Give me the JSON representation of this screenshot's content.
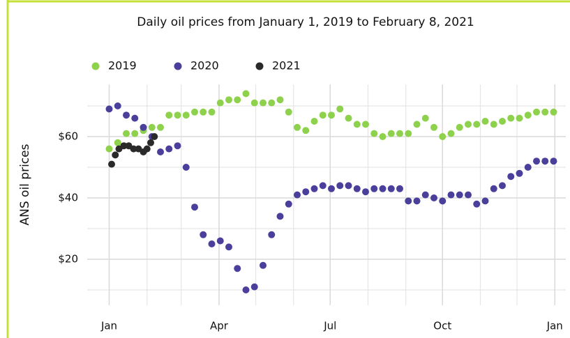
{
  "chart_data": {
    "type": "scatter",
    "title": "Daily oil prices from January 1, 2019 to February 8, 2021",
    "y_label": "ANS oil prices",
    "xlim": [
      -18,
      374
    ],
    "ylim": [
      5,
      77
    ],
    "xticks": [
      {
        "value": 0,
        "label": "Jan"
      },
      {
        "value": 90,
        "label": "Apr"
      },
      {
        "value": 181,
        "label": "Jul"
      },
      {
        "value": 273,
        "label": "Oct"
      },
      {
        "value": 365,
        "label": "Jan"
      }
    ],
    "xminor_ticks": [
      31,
      59,
      120,
      151,
      212,
      243,
      304,
      334
    ],
    "yticks": [
      {
        "value": 20,
        "label": "$20"
      },
      {
        "value": 40,
        "label": "$40"
      },
      {
        "value": 60,
        "label": "$60"
      }
    ],
    "yminor_ticks": [
      10,
      30,
      50,
      70
    ],
    "grid": true,
    "legend": "top-left",
    "series": [
      {
        "name": "2019",
        "color": "#8ed14c",
        "x": [
          0,
          7,
          14,
          21,
          28,
          35,
          42,
          49,
          56,
          63,
          70,
          77,
          84,
          91,
          98,
          105,
          112,
          119,
          126,
          133,
          140,
          147,
          154,
          161,
          168,
          175,
          182,
          189,
          196,
          203,
          210,
          217,
          224,
          231,
          238,
          245,
          252,
          259,
          266,
          273,
          280,
          287,
          294,
          301,
          308,
          315,
          322,
          329,
          336,
          343,
          350,
          357,
          364
        ],
        "values": [
          56,
          58,
          61,
          61,
          62,
          63,
          63,
          67,
          67,
          67,
          68,
          68,
          68,
          71,
          72,
          72,
          74,
          71,
          71,
          71,
          72,
          68,
          63,
          62,
          65,
          67,
          67,
          69,
          66,
          64,
          64,
          61,
          60,
          61,
          61,
          61,
          64,
          66,
          63,
          60,
          61,
          63,
          64,
          64,
          65,
          64,
          65,
          66,
          66,
          67,
          68,
          68,
          68
        ]
      },
      {
        "name": "2020",
        "color": "#4b3f9c",
        "x": [
          0,
          7,
          14,
          21,
          28,
          35,
          42,
          49,
          56,
          63,
          70,
          77,
          84,
          91,
          98,
          105,
          112,
          119,
          126,
          133,
          140,
          147,
          154,
          161,
          168,
          175,
          182,
          189,
          196,
          203,
          210,
          217,
          224,
          231,
          238,
          245,
          252,
          259,
          266,
          273,
          280,
          287,
          294,
          301,
          308,
          315,
          322,
          329,
          336,
          343,
          350,
          357,
          364
        ],
        "values": [
          69,
          70,
          67,
          66,
          63,
          60,
          55,
          56,
          57,
          50,
          37,
          28,
          25,
          26,
          24,
          17,
          10,
          11,
          18,
          28,
          34,
          38,
          41,
          42,
          43,
          44,
          43,
          44,
          44,
          43,
          42,
          43,
          43,
          43,
          43,
          39,
          39,
          41,
          40,
          39,
          41,
          41,
          41,
          38,
          39,
          43,
          44,
          47,
          48,
          50,
          52,
          52,
          52
        ]
      },
      {
        "name": "2021",
        "color": "#2a2a2a",
        "x": [
          2,
          5,
          8,
          12,
          16,
          20,
          24,
          28,
          31,
          34,
          37
        ],
        "values": [
          51,
          54,
          56,
          57,
          57,
          56,
          56,
          55,
          56,
          58,
          60
        ]
      }
    ]
  }
}
